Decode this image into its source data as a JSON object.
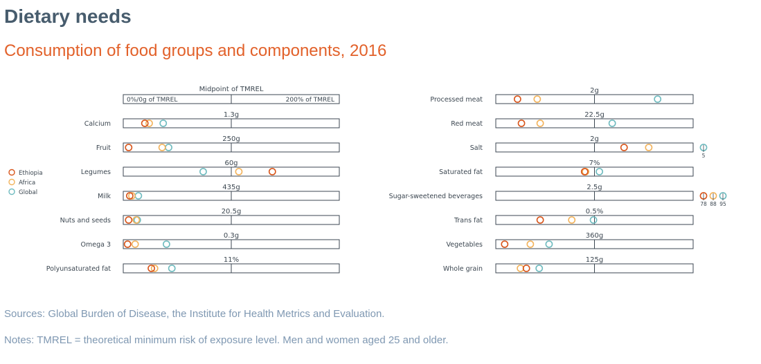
{
  "title": "Dietary needs",
  "subtitle": "Consumption of food groups and components, 2016",
  "sources": "Sources: Global Burden of Disease, the Institute for Health Metrics and Evaluation.",
  "notes": "Notes: TMREL = theoretical minimum risk of exposure level. Men and women aged 25 and older.",
  "colors": {
    "Ethiopia": "#d8561c",
    "Africa": "#f2b35c",
    "Global": "#6fbbbf",
    "axis": "#3b4650",
    "text": "#3b4650"
  },
  "chart_data": {
    "type": "scatter",
    "scale_note": "x = consumption as % of TMREL midpoint (0 to 200%); values beyond 200% are printed at the right edge",
    "header": {
      "top": "Midpoint of TMREL",
      "left": "0%/0g of TMREL",
      "right": "200% of TMREL"
    },
    "xlim": [
      0,
      200
    ],
    "legend": {
      "placement": "left",
      "items": [
        "Ethiopia",
        "Africa",
        "Global"
      ]
    },
    "panels": [
      {
        "rows": [
          {
            "label": "Calcium",
            "tmrel": "1.3g",
            "values": {
              "Ethiopia": 20,
              "Africa": 24,
              "Global": 37
            }
          },
          {
            "label": "Fruit",
            "tmrel": "250g",
            "values": {
              "Ethiopia": 5,
              "Africa": 36,
              "Global": 42
            }
          },
          {
            "label": "Legumes",
            "tmrel": "60g",
            "values": {
              "Ethiopia": 138,
              "Africa": 107,
              "Global": 74
            }
          },
          {
            "label": "Milk",
            "tmrel": "435g",
            "values": {
              "Ethiopia": 6,
              "Africa": 8,
              "Global": 14
            }
          },
          {
            "label": "Nuts and seeds",
            "tmrel": "20.5g",
            "values": {
              "Ethiopia": 5,
              "Africa": 12,
              "Global": 13
            }
          },
          {
            "label": "Omega 3",
            "tmrel": "0.3g",
            "values": {
              "Ethiopia": 4,
              "Africa": 11,
              "Global": 40
            }
          },
          {
            "label": "Polyunsaturated fat",
            "tmrel": "11%",
            "values": {
              "Ethiopia": 26,
              "Africa": 29,
              "Global": 45
            }
          }
        ]
      },
      {
        "rows": [
          {
            "label": "Processed meat",
            "tmrel": "2g",
            "values": {
              "Ethiopia": 22,
              "Africa": 42,
              "Global": 164
            }
          },
          {
            "label": "Red meat",
            "tmrel": "22.5g",
            "values": {
              "Ethiopia": 26,
              "Africa": 45,
              "Global": 118
            }
          },
          {
            "label": "Salt",
            "tmrel": "2g",
            "values": {
              "Ethiopia": 130,
              "Africa": 155,
              "Global": 200
            },
            "overflow": {
              "Global": "5"
            }
          },
          {
            "label": "Saturated fat",
            "tmrel": "7%",
            "values": {
              "Ethiopia": 90,
              "Africa": 91,
              "Global": 105
            }
          },
          {
            "label": "Sugar-sweetened beverages",
            "tmrel": "2.5g",
            "values": {
              "Ethiopia": 200,
              "Africa": 200,
              "Global": 200
            },
            "overflow": {
              "Ethiopia": "78",
              "Africa": "88",
              "Global": "95"
            }
          },
          {
            "label": "Trans fat",
            "tmrel": "0.5%",
            "values": {
              "Ethiopia": 45,
              "Africa": 77,
              "Global": 99
            }
          },
          {
            "label": "Vegetables",
            "tmrel": "360g",
            "values": {
              "Ethiopia": 9,
              "Africa": 35,
              "Global": 54
            }
          },
          {
            "label": "Whole grain",
            "tmrel": "125g",
            "values": {
              "Ethiopia": 31,
              "Africa": 25,
              "Global": 44
            }
          }
        ]
      }
    ]
  }
}
